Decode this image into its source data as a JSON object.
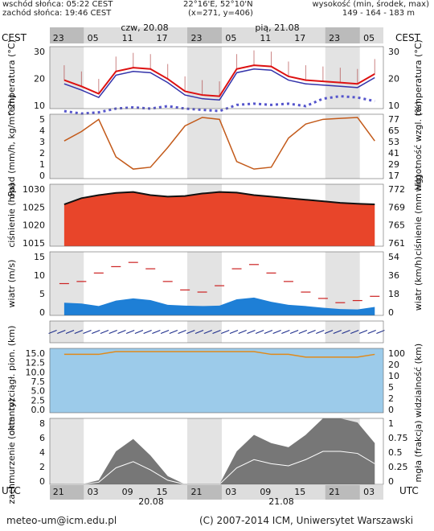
{
  "header": {
    "sunrise": "wschód słońca: 05:22 CEST",
    "sunset": "zachód słońca: 19:46 CEST",
    "coords": "22°16'E, 52°10'N",
    "grid": "(x=271, y=406)",
    "elev_label": "wysokość (min, środek, max)",
    "elev_values": "149 - 164 - 183 m"
  },
  "time": {
    "tz_top": "CEST",
    "tz_bottom": "UTC",
    "day1": "czw, 20.08",
    "day2": "pią, 21.08",
    "top_ticks": [
      "23",
      "05",
      "11",
      "17",
      "23",
      "05",
      "11",
      "17",
      "23",
      "05"
    ],
    "bottom_ticks": [
      "21",
      "03",
      "09",
      "15",
      "21",
      "03",
      "09",
      "15",
      "21",
      "03"
    ],
    "date1": "20.08",
    "date2": "21.08"
  },
  "footer": {
    "email": "meteo-um@icm.edu.pl",
    "copyright": "(C) 2007-2014 ICM, Uniwersytet Warszawski"
  },
  "panels": [
    {
      "left_label": "temperatura (°C)",
      "right_label": "temperatura (°C)",
      "left_ticks": [
        "30",
        "20",
        "10"
      ],
      "right_ticks": [
        "30",
        "20",
        "10"
      ]
    },
    {
      "left_label": "opad (mm/h, kg/m^2h)",
      "right_label": "wilgotność wzgl. (%)",
      "left_ticks": [
        "5",
        "4",
        "3",
        "2",
        "1",
        "0"
      ],
      "right_ticks": [
        "77",
        "65",
        "53",
        "41",
        "29",
        "17"
      ]
    },
    {
      "left_label": "ciśnienie (hPa)",
      "right_label": "ciśnienie (mm Hg)",
      "left_ticks": [
        "1030",
        "1025",
        "1020",
        "1015"
      ],
      "right_ticks": [
        "772",
        "769",
        "765",
        "761"
      ]
    },
    {
      "left_label": "wiatr (m/s)",
      "right_label": "wiatr (km/h)",
      "left_ticks": [
        "15",
        "10",
        "5",
        "0"
      ],
      "right_ticks": [
        "54",
        "36",
        "18",
        "0"
      ]
    },
    {
      "left_label": "",
      "right_label": "",
      "left_ticks": [],
      "right_ticks": []
    },
    {
      "left_label": "chm. rozciągł. pion. (km)",
      "right_label": "widzialność (km)",
      "left_ticks": [
        "15.0",
        "12.5",
        "10.0",
        "7.5",
        "5.0",
        "2.5",
        "0.0"
      ],
      "right_ticks": [
        "100",
        "20",
        "10",
        "5",
        "2",
        "0"
      ]
    },
    {
      "left_label": "zachmurzenie (oktanty)",
      "right_label": "mgła (frakcja)",
      "left_ticks": [
        "8",
        "6",
        "4",
        "2",
        "0"
      ],
      "right_ticks": [
        "1",
        "0.75",
        "0.5",
        "0.25",
        "0"
      ]
    }
  ],
  "chart_data": {
    "type": "line",
    "x_hours": [
      0,
      3,
      6,
      9,
      12,
      15,
      18,
      21,
      24,
      27,
      30,
      33,
      36,
      39,
      42,
      45,
      48,
      51,
      54
    ],
    "temperature": [
      16.5,
      14,
      11,
      20,
      21.5,
      21,
      17,
      12,
      10.5,
      10,
      21,
      22.5,
      22,
      18,
      16.5,
      16,
      15.5,
      15,
      19
    ],
    "dew_point": [
      4,
      3,
      3.5,
      5,
      5.5,
      5,
      6,
      5,
      4.5,
      4,
      6.5,
      7,
      6.5,
      7,
      6,
      9,
      10,
      9.5,
      8
    ],
    "humidity_pct": [
      52,
      62,
      75,
      35,
      22,
      24,
      45,
      68,
      77,
      75,
      30,
      22,
      24,
      55,
      70,
      75,
      76,
      77,
      52
    ],
    "pressure_hPa": [
      1025.5,
      1027.5,
      1028.5,
      1029.2,
      1029.5,
      1028.5,
      1028,
      1028.2,
      1029,
      1029.5,
      1029.3,
      1028.5,
      1028,
      1027.5,
      1027,
      1026.5,
      1026,
      1025.7,
      1025.5
    ],
    "wind_speed_ms": [
      3,
      2.8,
      2.2,
      3.5,
      4,
      3.6,
      2.5,
      2.3,
      2.2,
      2.3,
      3.8,
      4.2,
      3.2,
      2.5,
      2.2,
      1.8,
      1.5,
      1.4,
      2
    ],
    "wind_gust_ms": [
      7.5,
      8,
      10,
      11.5,
      12.5,
      11,
      8,
      6,
      5.5,
      7,
      11,
      12,
      10,
      8,
      5.5,
      4,
      3,
      3.5,
      4.5
    ],
    "visibility_km": [
      20,
      20,
      20,
      21,
      21,
      21,
      21,
      21,
      21,
      21,
      21,
      21,
      20,
      20,
      19,
      19,
      19,
      19,
      20
    ],
    "cloud_total_oktas": [
      0,
      0,
      0.5,
      4,
      5.5,
      3.5,
      1,
      0,
      0,
      0,
      4,
      6,
      5,
      4.5,
      6,
      8,
      8,
      7.5,
      5
    ]
  }
}
